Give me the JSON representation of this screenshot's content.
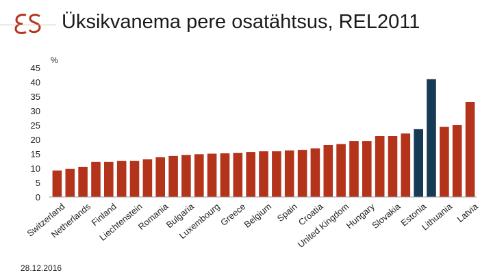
{
  "header": {
    "title": "Üksikvanema pere osatähtsus, REL2011"
  },
  "footer": {
    "date": "28.12.2016"
  },
  "colors": {
    "bar_default": "#b4331b",
    "bar_highlight": "#173a55",
    "logo": "#b4331b"
  },
  "chart_data": {
    "type": "bar",
    "ylabel": "%",
    "ylim": [
      0,
      45
    ],
    "yticks": [
      "0",
      "5",
      "10",
      "15",
      "20",
      "25",
      "30",
      "35",
      "40",
      "45"
    ],
    "grid": false,
    "categories": [
      "Switzerland",
      "",
      "Netherlands",
      "",
      "Finland",
      "",
      "Liechtenstein",
      "",
      "Romania",
      "",
      "Bulgaria",
      "",
      "Luxembourg",
      "",
      "Greece",
      "",
      "Belgium",
      "",
      "Spain",
      "",
      "Croatia",
      "",
      "United Kingdom",
      "",
      "Hungary",
      "",
      "Slovakia",
      "",
      "Estonia",
      "",
      "Lithuania",
      "",
      "Latvia"
    ],
    "values": [
      9.2,
      9.8,
      10.5,
      12.2,
      12.2,
      12.6,
      12.6,
      13.1,
      13.8,
      14.3,
      14.6,
      14.9,
      15.1,
      15.2,
      15.3,
      15.7,
      15.9,
      15.9,
      16.2,
      16.4,
      16.9,
      18.1,
      18.4,
      19.5,
      19.5,
      21.2,
      21.2,
      22.1,
      23.6,
      41.0,
      24.4,
      25.0,
      33.1
    ],
    "highlight_categories_index": [
      28,
      29
    ]
  }
}
